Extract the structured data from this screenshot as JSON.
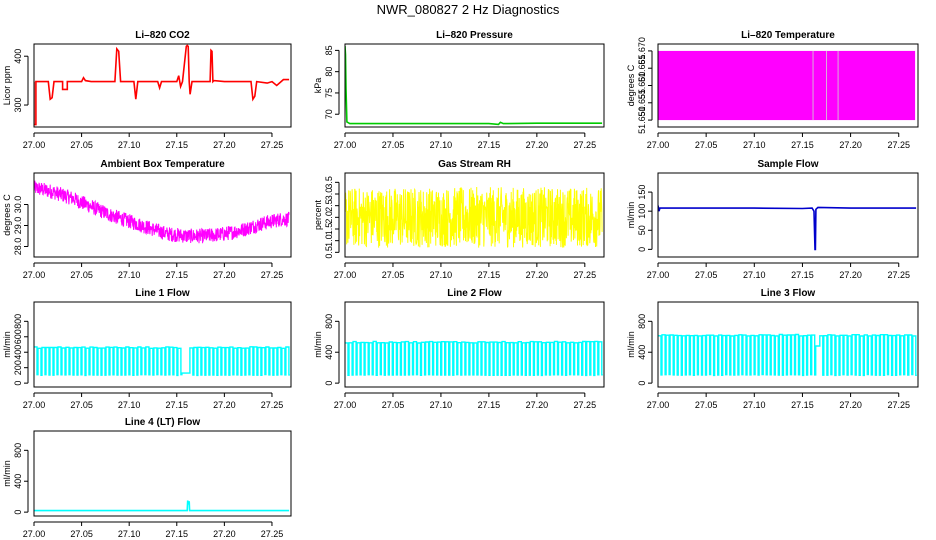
{
  "title": "NWR_080827  2 Hz Diagnostics",
  "chart_data": [
    {
      "type": "line",
      "title": "Li–820 CO2",
      "ylabel": "Licor ppm",
      "xlim": [
        27.0,
        27.27
      ],
      "ylim": [
        255,
        425
      ],
      "x_ticks": [
        27.0,
        27.05,
        27.1,
        27.15,
        27.2,
        27.25
      ],
      "x_tick_labels": [
        "27.00",
        "27.05",
        "27.10",
        "27.15",
        "27.20",
        "27.25"
      ],
      "y_ticks": [
        300,
        400
      ],
      "y_tick_labels": [
        "300",
        "400"
      ],
      "color": "#ff0000",
      "series": [
        {
          "x": [
            27.0,
            27.0,
            27.002,
            27.002,
            27.015,
            27.017,
            27.019,
            27.021,
            27.03,
            27.03,
            27.035,
            27.035,
            27.05,
            27.052,
            27.054,
            27.06,
            27.085,
            27.087,
            27.089,
            27.091,
            27.105,
            27.107,
            27.109,
            27.13,
            27.132,
            27.134,
            27.15,
            27.152,
            27.154,
            27.156,
            27.16,
            27.161,
            27.162,
            27.163,
            27.164,
            27.166,
            27.175,
            27.185,
            27.186,
            27.187,
            27.188,
            27.189,
            27.2,
            27.228,
            27.23,
            27.232,
            27.234,
            27.245,
            27.25,
            27.255,
            27.262,
            27.268
          ],
          "y": [
            348,
            260,
            260,
            348,
            348,
            312,
            315,
            348,
            348,
            332,
            332,
            348,
            348,
            356,
            350,
            348,
            348,
            415,
            410,
            348,
            348,
            312,
            348,
            348,
            335,
            348,
            348,
            360,
            338,
            348,
            420,
            422,
            420,
            348,
            322,
            348,
            348,
            348,
            412,
            410,
            348,
            350,
            348,
            348,
            312,
            318,
            348,
            345,
            348,
            340,
            352,
            352
          ]
        }
      ]
    },
    {
      "type": "line",
      "title": "Li–820 Pressure",
      "ylabel": "kPa",
      "xlim": [
        27.0,
        27.27
      ],
      "ylim": [
        67.0,
        86.5
      ],
      "x_ticks": [
        27.0,
        27.05,
        27.1,
        27.15,
        27.2,
        27.25
      ],
      "x_tick_labels": [
        "27.00",
        "27.05",
        "27.10",
        "27.15",
        "27.20",
        "27.25"
      ],
      "y_ticks": [
        70,
        75,
        80,
        85
      ],
      "y_tick_labels": [
        "70",
        "75",
        "80",
        "85"
      ],
      "color": "#00cc00",
      "series": [
        {
          "x": [
            27.0,
            27.0005,
            27.001,
            27.002,
            27.005,
            27.05,
            27.1,
            27.15,
            27.16,
            27.162,
            27.165,
            27.2,
            27.25,
            27.268
          ],
          "y": [
            86.0,
            84.0,
            76.0,
            68.2,
            67.8,
            67.8,
            67.8,
            67.8,
            67.6,
            68.1,
            67.8,
            67.9,
            67.9,
            67.9
          ]
        }
      ]
    },
    {
      "type": "area",
      "title": "Li–820 Temperature",
      "ylabel": "degrees C",
      "xlim": [
        27.0,
        27.27
      ],
      "ylim": [
        51.648,
        51.672
      ],
      "x_ticks": [
        27.0,
        27.05,
        27.1,
        27.15,
        27.2,
        27.25
      ],
      "x_tick_labels": [
        "27.00",
        "27.05",
        "27.10",
        "27.15",
        "27.20",
        "27.25"
      ],
      "y_ticks": [
        51.65,
        51.655,
        51.66,
        51.665,
        51.67
      ],
      "y_tick_labels": [
        "51.650",
        "51.655",
        "51.660",
        "51.665",
        "51.670"
      ],
      "color": "#ff00ff",
      "series": [
        {
          "x_range": [
            27.0,
            27.267
          ],
          "y_range": [
            51.65,
            51.67
          ],
          "gaps_x": [
            27.161,
            27.175,
            27.187
          ]
        }
      ]
    },
    {
      "type": "line",
      "title": "Ambient Box Temperature",
      "ylabel": "degrees C",
      "xlim": [
        27.0,
        27.27
      ],
      "ylim": [
        27.5,
        31.5
      ],
      "x_ticks": [
        27.0,
        27.05,
        27.1,
        27.15,
        27.2,
        27.25
      ],
      "x_tick_labels": [
        "27.00",
        "27.05",
        "27.10",
        "27.15",
        "27.20",
        "27.25"
      ],
      "y_ticks": [
        28.0,
        29.0,
        30.0
      ],
      "y_tick_labels": [
        "28.0",
        "29.0",
        "30.0"
      ],
      "color": "#ff00ff",
      "noise": 0.35,
      "series": [
        {
          "x": [
            27.0,
            27.02,
            27.04,
            27.06,
            27.08,
            27.1,
            27.12,
            27.14,
            27.16,
            27.18,
            27.2,
            27.22,
            27.24,
            27.26,
            27.268
          ],
          "y": [
            30.8,
            30.6,
            30.3,
            29.9,
            29.5,
            29.2,
            28.9,
            28.6,
            28.5,
            28.5,
            28.6,
            28.8,
            29.1,
            29.3,
            29.3
          ]
        }
      ]
    },
    {
      "type": "line",
      "title": "Gas Stream RH",
      "ylabel": "percent",
      "xlim": [
        27.0,
        27.27
      ],
      "ylim": [
        0.3,
        3.9
      ],
      "x_ticks": [
        27.0,
        27.05,
        27.1,
        27.15,
        27.2,
        27.25
      ],
      "x_tick_labels": [
        "27.00",
        "27.05",
        "27.10",
        "27.15",
        "27.20",
        "27.25"
      ],
      "y_ticks": [
        0.5,
        1.0,
        1.5,
        2.0,
        2.5,
        3.0,
        3.5
      ],
      "y_tick_labels": [
        "0.5",
        "1.0",
        "1.5",
        "2.0",
        "2.5",
        "3.0",
        "3.5"
      ],
      "color": "#ffff00",
      "noise": 1.3,
      "series": [
        {
          "x": [
            27.0,
            27.268
          ],
          "y": [
            2.0,
            2.0
          ]
        }
      ]
    },
    {
      "type": "line",
      "title": "Sample Flow",
      "ylabel": "ml/min",
      "xlim": [
        27.0,
        27.27
      ],
      "ylim": [
        -20,
        200
      ],
      "x_ticks": [
        27.0,
        27.05,
        27.1,
        27.15,
        27.2,
        27.25
      ],
      "x_tick_labels": [
        "27.00",
        "27.05",
        "27.10",
        "27.15",
        "27.20",
        "27.25"
      ],
      "y_ticks": [
        0,
        50,
        100,
        150
      ],
      "y_tick_labels": [
        "0",
        "50",
        "100",
        "150"
      ],
      "color": "#0000cc",
      "series": [
        {
          "x": [
            27.0,
            27.001,
            27.002,
            27.05,
            27.1,
            27.15,
            27.16,
            27.162,
            27.163,
            27.1635,
            27.164,
            27.166,
            27.2,
            27.25,
            27.268
          ],
          "y": [
            115,
            100,
            108,
            108,
            108,
            107,
            108,
            100,
            0,
            0,
            105,
            110,
            108,
            108,
            108
          ]
        }
      ]
    },
    {
      "type": "line",
      "title": "Line 1 Flow",
      "ylabel": "ml/min",
      "xlim": [
        27.0,
        27.27
      ],
      "ylim": [
        -50,
        1050
      ],
      "x_ticks": [
        27.0,
        27.05,
        27.1,
        27.15,
        27.2,
        27.25
      ],
      "x_tick_labels": [
        "27.00",
        "27.05",
        "27.10",
        "27.15",
        "27.20",
        "27.25"
      ],
      "y_ticks": [
        0,
        200,
        400,
        600,
        800
      ],
      "y_tick_labels": [
        "0",
        "200",
        "400",
        "600",
        "800"
      ],
      "color": "#00ffff",
      "series": [
        {
          "base": 460,
          "low": 100,
          "period": 0.0042,
          "gap_x": [
            27.155,
            27.163
          ],
          "gap_y": 130
        }
      ]
    },
    {
      "type": "line",
      "title": "Line 2 Flow",
      "ylabel": "ml/min",
      "xlim": [
        27.0,
        27.27
      ],
      "ylim": [
        -50,
        1050
      ],
      "x_ticks": [
        27.0,
        27.05,
        27.1,
        27.15,
        27.2,
        27.25
      ],
      "x_tick_labels": [
        "27.00",
        "27.05",
        "27.10",
        "27.15",
        "27.20",
        "27.25"
      ],
      "y_ticks": [
        0,
        400,
        800
      ],
      "y_tick_labels": [
        "0",
        "400",
        "800"
      ],
      "color": "#00ffff",
      "series": [
        {
          "base": 530,
          "low": 100,
          "period": 0.0042,
          "gap_x": [
            27.16,
            27.163
          ],
          "gap_y": 450
        }
      ]
    },
    {
      "type": "line",
      "title": "Line 3 Flow",
      "ylabel": "ml/min",
      "xlim": [
        27.0,
        27.27
      ],
      "ylim": [
        -50,
        1050
      ],
      "x_ticks": [
        27.0,
        27.05,
        27.1,
        27.15,
        27.2,
        27.25
      ],
      "x_tick_labels": [
        "27.00",
        "27.05",
        "27.10",
        "27.15",
        "27.20",
        "27.25"
      ],
      "y_ticks": [
        0,
        400,
        800
      ],
      "y_tick_labels": [
        "0",
        "400",
        "800"
      ],
      "color": "#00ffff",
      "series": [
        {
          "base": 620,
          "low": 100,
          "period": 0.0042,
          "gap_x": [
            27.162,
            27.165
          ],
          "gap_y": 480
        }
      ]
    },
    {
      "type": "line",
      "title": "Line 4 (LT) Flow",
      "ylabel": "ml/min",
      "xlim": [
        27.0,
        27.27
      ],
      "ylim": [
        -50,
        1050
      ],
      "x_ticks": [
        27.0,
        27.05,
        27.1,
        27.15,
        27.2,
        27.25
      ],
      "x_tick_labels": [
        "27.00",
        "27.05",
        "27.10",
        "27.15",
        "27.20",
        "27.25"
      ],
      "y_ticks": [
        0,
        400,
        800
      ],
      "y_tick_labels": [
        "0",
        "400",
        "800"
      ],
      "color": "#00ffff",
      "series": [
        {
          "x": [
            27.0,
            27.05,
            27.1,
            27.15,
            27.161,
            27.1615,
            27.162,
            27.163,
            27.1635,
            27.164,
            27.2,
            27.25,
            27.268
          ],
          "y": [
            20,
            20,
            20,
            20,
            20,
            150,
            100,
            140,
            20,
            20,
            20,
            20,
            20
          ]
        }
      ]
    }
  ]
}
